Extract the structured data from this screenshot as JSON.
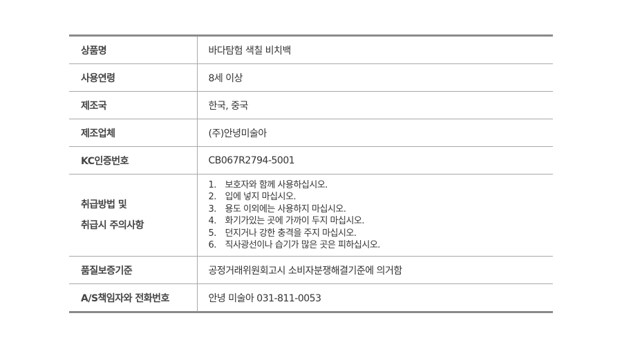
{
  "rows": [
    {
      "label": "상품명",
      "value": "바다탐험 색칠 비치백"
    },
    {
      "label": "사용연령",
      "value": "8세 이상"
    },
    {
      "label": "제조국",
      "value": "한국, 중국"
    },
    {
      "label": "제조업체",
      "value": "(주)안녕미술아"
    },
    {
      "label": "KC인증번호",
      "value": "CB067R2794-5001"
    }
  ],
  "care": {
    "label_line1": "취급방법 및",
    "label_line2": "취급시 주의사항",
    "items": [
      {
        "n": "1.",
        "text": "보호자와 함께 사용하십시오."
      },
      {
        "n": "2.",
        "text": "입에 넣지 마십시오."
      },
      {
        "n": "3.",
        "text": "용도 이외에는 사용하지 마십시오."
      },
      {
        "n": "4.",
        "text": "화기가있는 곳에 가까이 두지 마십시오."
      },
      {
        "n": "5.",
        "text": "던지거나 강한 충격을 주지 마십시오."
      },
      {
        "n": "6.",
        "text": "직사광선이나 습기가 많은 곳은 피하십시오."
      }
    ]
  },
  "rows2": [
    {
      "label": "품질보증기준",
      "value": "공정거래위원회고시 소비자분쟁해결기준에 의거함"
    },
    {
      "label": "A/S책임자와 전화번호",
      "value": "안녕 미술아 031-811-0053"
    }
  ]
}
